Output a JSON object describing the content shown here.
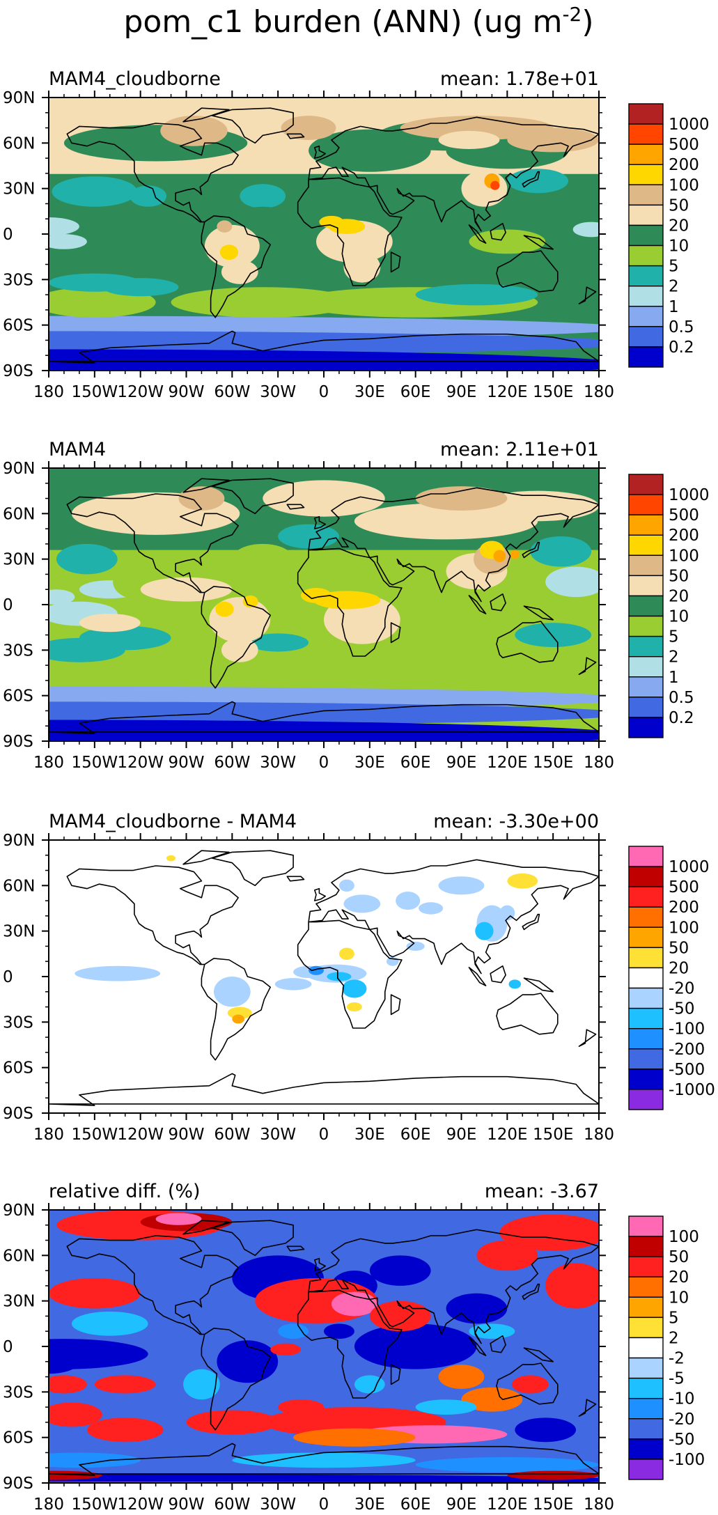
{
  "figure": {
    "title": "pom_c1 burden (ANN) (ug m",
    "title_exponent": "-2",
    "title_close": ")"
  },
  "axes": {
    "lon_ticks": [
      "180",
      "150W",
      "120W",
      "90W",
      "60W",
      "30W",
      "0",
      "30E",
      "60E",
      "90E",
      "120E",
      "150E",
      "180"
    ],
    "lat_ticks": [
      "90N",
      "60N",
      "30N",
      "0",
      "30S",
      "60S",
      "90S"
    ]
  },
  "chart_data": [
    {
      "type": "heatmap",
      "left_title": "MAM4_cloudborne",
      "mean_label": "mean: 1.78e+01",
      "mean": 17.8,
      "xlim": [
        -180,
        180
      ],
      "ylim": [
        -90,
        90
      ],
      "colorbar": {
        "levels": [
          "1000",
          "500",
          "200",
          "100",
          "50",
          "20",
          "10",
          "5",
          "2",
          "1",
          "0.5",
          "0.2"
        ],
        "colors": [
          "#b22222",
          "#ff4500",
          "#ffa500",
          "#ffd700",
          "#deb887",
          "#f5deb3",
          "#2e8b57",
          "#9acd32",
          "#20b2aa",
          "#b0e0e6",
          "#87a9f0",
          "#4169e1",
          "#0000cd"
        ]
      }
    },
    {
      "type": "heatmap",
      "left_title": "MAM4",
      "mean_label": "mean: 2.11e+01",
      "mean": 21.1,
      "xlim": [
        -180,
        180
      ],
      "ylim": [
        -90,
        90
      ],
      "colorbar": {
        "levels": [
          "1000",
          "500",
          "200",
          "100",
          "50",
          "20",
          "10",
          "5",
          "2",
          "1",
          "0.5",
          "0.2"
        ],
        "colors": [
          "#b22222",
          "#ff4500",
          "#ffa500",
          "#ffd700",
          "#deb887",
          "#f5deb3",
          "#2e8b57",
          "#9acd32",
          "#20b2aa",
          "#b0e0e6",
          "#87a9f0",
          "#4169e1",
          "#0000cd"
        ]
      }
    },
    {
      "type": "heatmap",
      "left_title": "MAM4_cloudborne - MAM4",
      "mean_label": "mean: -3.30e+00",
      "mean": -3.3,
      "xlim": [
        -180,
        180
      ],
      "ylim": [
        -90,
        90
      ],
      "colorbar": {
        "levels": [
          "1000",
          "500",
          "200",
          "100",
          "50",
          "20",
          "-20",
          "-50",
          "-100",
          "-200",
          "-500",
          "-1000"
        ],
        "colors": [
          "#ff69b4",
          "#c00000",
          "#ff2020",
          "#ff7000",
          "#ffa500",
          "#ffe135",
          "#ffffff",
          "#aad4ff",
          "#1ec0ff",
          "#1e90ff",
          "#4169e1",
          "#0000cd",
          "#8a2be2"
        ]
      }
    },
    {
      "type": "heatmap",
      "left_title": "relative diff. (%)",
      "mean_label": "mean: -3.67",
      "mean": -3.67,
      "xlim": [
        -180,
        180
      ],
      "ylim": [
        -90,
        90
      ],
      "colorbar": {
        "levels": [
          "100",
          "50",
          "20",
          "10",
          "5",
          "2",
          "-2",
          "-5",
          "-10",
          "-20",
          "-50",
          "-100"
        ],
        "colors": [
          "#ff69b4",
          "#c00000",
          "#ff2020",
          "#ff7000",
          "#ffa500",
          "#ffe135",
          "#ffffff",
          "#aad4ff",
          "#1ec0ff",
          "#1e90ff",
          "#4169e1",
          "#0000cd",
          "#8a2be2"
        ]
      }
    }
  ]
}
